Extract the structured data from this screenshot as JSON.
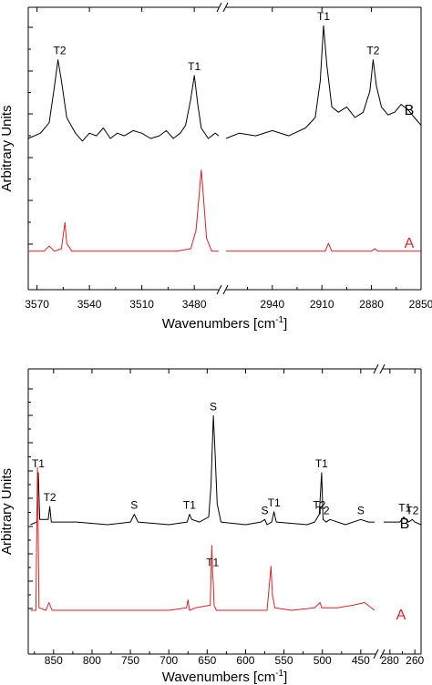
{
  "chart_data": [
    {
      "type": "line",
      "panel": "top",
      "ylabel": "Arbitrary Units",
      "xlabel": "Wavenumbers [cm",
      "xlabel_sup": "-1",
      "xlabel_end": "]",
      "axis_break": true,
      "x_segments": [
        {
          "xlim": [
            3575,
            3466
          ],
          "ticks": [
            3570,
            3540,
            3510,
            3480
          ]
        },
        {
          "xlim": [
            2968,
            2850
          ],
          "ticks": [
            2940,
            2910,
            2880,
            2850
          ]
        }
      ],
      "ylim": [
        0,
        1
      ],
      "series": [
        {
          "name": "B",
          "color": "#000000",
          "segments": [
            [
              [
                3575,
                0.5
              ],
              [
                3568,
                0.52
              ],
              [
                3563,
                0.56
              ],
              [
                3560,
                0.7
              ],
              [
                3558,
                0.8
              ],
              [
                3556,
                0.72
              ],
              [
                3553,
                0.58
              ],
              [
                3548,
                0.52
              ],
              [
                3544,
                0.49
              ],
              [
                3540,
                0.52
              ],
              [
                3536,
                0.51
              ],
              [
                3532,
                0.54
              ],
              [
                3528,
                0.5
              ],
              [
                3524,
                0.52
              ],
              [
                3520,
                0.51
              ],
              [
                3515,
                0.53
              ],
              [
                3510,
                0.52
              ],
              [
                3505,
                0.5
              ],
              [
                3500,
                0.51
              ],
              [
                3496,
                0.53
              ],
              [
                3492,
                0.5
              ],
              [
                3488,
                0.52
              ],
              [
                3485,
                0.55
              ],
              [
                3482,
                0.65
              ],
              [
                3480,
                0.74
              ],
              [
                3478,
                0.63
              ],
              [
                3476,
                0.54
              ],
              [
                3472,
                0.5
              ],
              [
                3468,
                0.52
              ],
              [
                3466,
                0.51
              ]
            ],
            [
              [
                2968,
                0.5
              ],
              [
                2960,
                0.52
              ],
              [
                2950,
                0.51
              ],
              [
                2940,
                0.53
              ],
              [
                2930,
                0.51
              ],
              [
                2920,
                0.54
              ],
              [
                2914,
                0.58
              ],
              [
                2911,
                0.72
              ],
              [
                2909,
                0.93
              ],
              [
                2907,
                0.78
              ],
              [
                2904,
                0.62
              ],
              [
                2900,
                0.6
              ],
              [
                2895,
                0.62
              ],
              [
                2890,
                0.58
              ],
              [
                2885,
                0.6
              ],
              [
                2881,
                0.68
              ],
              [
                2879,
                0.8
              ],
              [
                2877,
                0.7
              ],
              [
                2874,
                0.62
              ],
              [
                2870,
                0.59
              ],
              [
                2866,
                0.6
              ],
              [
                2862,
                0.63
              ],
              [
                2858,
                0.61
              ],
              [
                2854,
                0.58
              ],
              [
                2850,
                0.55
              ]
            ]
          ]
        },
        {
          "name": "A",
          "color": "#e02020",
          "segments": [
            [
              [
                3575,
                0.07
              ],
              [
                3566,
                0.07
              ],
              [
                3563,
                0.09
              ],
              [
                3560,
                0.07
              ],
              [
                3556,
                0.08
              ],
              [
                3554,
                0.18
              ],
              [
                3553,
                0.1
              ],
              [
                3550,
                0.07
              ],
              [
                3530,
                0.07
              ],
              [
                3510,
                0.07
              ],
              [
                3490,
                0.07
              ],
              [
                3482,
                0.08
              ],
              [
                3479,
                0.15
              ],
              [
                3477,
                0.3
              ],
              [
                3476,
                0.38
              ],
              [
                3475,
                0.3
              ],
              [
                3473,
                0.12
              ],
              [
                3470,
                0.07
              ],
              [
                3466,
                0.07
              ]
            ],
            [
              [
                2968,
                0.07
              ],
              [
                2940,
                0.07
              ],
              [
                2920,
                0.07
              ],
              [
                2908,
                0.07
              ],
              [
                2906,
                0.1
              ],
              [
                2904,
                0.07
              ],
              [
                2890,
                0.07
              ],
              [
                2880,
                0.07
              ],
              [
                2878,
                0.08
              ],
              [
                2876,
                0.07
              ],
              [
                2850,
                0.07
              ]
            ]
          ]
        }
      ],
      "annotations": [
        {
          "text": "T2",
          "x": 3557,
          "series": "B"
        },
        {
          "text": "T1",
          "x": 3480,
          "series": "B"
        },
        {
          "text": "T1",
          "x": 2909,
          "series": "B"
        },
        {
          "text": "T2",
          "x": 2879,
          "series": "B"
        }
      ],
      "series_labels": [
        {
          "text": "B",
          "color": "#000000"
        },
        {
          "text": "A",
          "color": "#e02020"
        }
      ]
    },
    {
      "type": "line",
      "panel": "bottom",
      "ylabel": "Arbitrary Units",
      "xlabel": "Wavenumbers [cm",
      "xlabel_sup": "-1",
      "xlabel_end": "]",
      "axis_break": true,
      "x_segments": [
        {
          "xlim": [
            883,
            432
          ],
          "ticks": [
            850,
            800,
            750,
            700,
            650,
            600,
            550,
            500,
            450
          ]
        },
        {
          "xlim": [
            285,
            255
          ],
          "ticks": [
            280,
            260
          ]
        }
      ],
      "ylim": [
        0,
        1
      ],
      "series": [
        {
          "name": "B",
          "color": "#000000",
          "segments": [
            [
              [
                880,
                0.4
              ],
              [
                872,
                0.41
              ],
              [
                870,
                0.6
              ],
              [
                868,
                0.42
              ],
              [
                857,
                0.42
              ],
              [
                855,
                0.47
              ],
              [
                853,
                0.41
              ],
              [
                820,
                0.41
              ],
              [
                780,
                0.4
              ],
              [
                750,
                0.41
              ],
              [
                745,
                0.44
              ],
              [
                740,
                0.41
              ],
              [
                700,
                0.4
              ],
              [
                676,
                0.41
              ],
              [
                673,
                0.44
              ],
              [
                670,
                0.42
              ],
              [
                660,
                0.41
              ],
              [
                648,
                0.43
              ],
              [
                645,
                0.55
              ],
              [
                642,
                0.82
              ],
              [
                640,
                0.7
              ],
              [
                637,
                0.48
              ],
              [
                632,
                0.41
              ],
              [
                600,
                0.4
              ],
              [
                580,
                0.41
              ],
              [
                575,
                0.42
              ],
              [
                572,
                0.4
              ],
              [
                566,
                0.41
              ],
              [
                563,
                0.45
              ],
              [
                560,
                0.41
              ],
              [
                520,
                0.4
              ],
              [
                510,
                0.41
              ],
              [
                504,
                0.44
              ],
              [
                501,
                0.6
              ],
              [
                499,
                0.42
              ],
              [
                495,
                0.41
              ],
              [
                490,
                0.42
              ],
              [
                470,
                0.4
              ],
              [
                450,
                0.42
              ],
              [
                440,
                0.41
              ],
              [
                432,
                0.41
              ]
            ],
            [
              [
                285,
                0.41
              ],
              [
                272,
                0.41
              ],
              [
                269,
                0.43
              ],
              [
                265,
                0.41
              ],
              [
                262,
                0.42
              ],
              [
                260,
                0.41
              ],
              [
                255,
                0.4
              ]
            ]
          ]
        },
        {
          "name": "A",
          "color": "#e02020",
          "segments": [
            [
              [
                880,
                0.07
              ],
              [
                873,
                0.07
              ],
              [
                871,
                0.62
              ],
              [
                869,
                0.08
              ],
              [
                860,
                0.07
              ],
              [
                856,
                0.1
              ],
              [
                852,
                0.07
              ],
              [
                820,
                0.07
              ],
              [
                780,
                0.07
              ],
              [
                700,
                0.07
              ],
              [
                677,
                0.08
              ],
              [
                675,
                0.11
              ],
              [
                673,
                0.07
              ],
              [
                665,
                0.08
              ],
              [
                646,
                0.09
              ],
              [
                644,
                0.32
              ],
              [
                643,
                0.22
              ],
              [
                642,
                0.17
              ],
              [
                641,
                0.09
              ],
              [
                638,
                0.07
              ],
              [
                600,
                0.07
              ],
              [
                572,
                0.07
              ],
              [
                569,
                0.17
              ],
              [
                567,
                0.24
              ],
              [
                565,
                0.13
              ],
              [
                562,
                0.08
              ],
              [
                540,
                0.07
              ],
              [
                510,
                0.08
              ],
              [
                503,
                0.1
              ],
              [
                501,
                0.08
              ],
              [
                480,
                0.08
              ],
              [
                460,
                0.09
              ],
              [
                445,
                0.1
              ],
              [
                432,
                0.07
              ]
            ]
          ]
        }
      ],
      "annotations": [
        {
          "text": "T1",
          "x": 870,
          "series": "B"
        },
        {
          "text": "T2",
          "x": 855,
          "series": "B"
        },
        {
          "text": "S",
          "x": 745,
          "series": "B"
        },
        {
          "text": "T1",
          "x": 673,
          "series": "B"
        },
        {
          "text": "S",
          "x": 642,
          "series": "B"
        },
        {
          "text": "S",
          "x": 575,
          "series": "B"
        },
        {
          "text": "T1",
          "x": 563,
          "series": "B"
        },
        {
          "text": "T2",
          "x": 504,
          "series": "B"
        },
        {
          "text": "T1",
          "x": 501,
          "series": "B"
        },
        {
          "text": "T2",
          "x": 499,
          "series": "B"
        },
        {
          "text": "S",
          "x": 450,
          "series": "B"
        },
        {
          "text": "T1",
          "x": 268,
          "series": "B"
        },
        {
          "text": "T2",
          "x": 262,
          "series": "B"
        },
        {
          "text": "T1",
          "x": 643,
          "series": "A"
        }
      ],
      "series_labels": [
        {
          "text": "B",
          "color": "#000000"
        },
        {
          "text": "A",
          "color": "#e02020"
        }
      ]
    }
  ]
}
